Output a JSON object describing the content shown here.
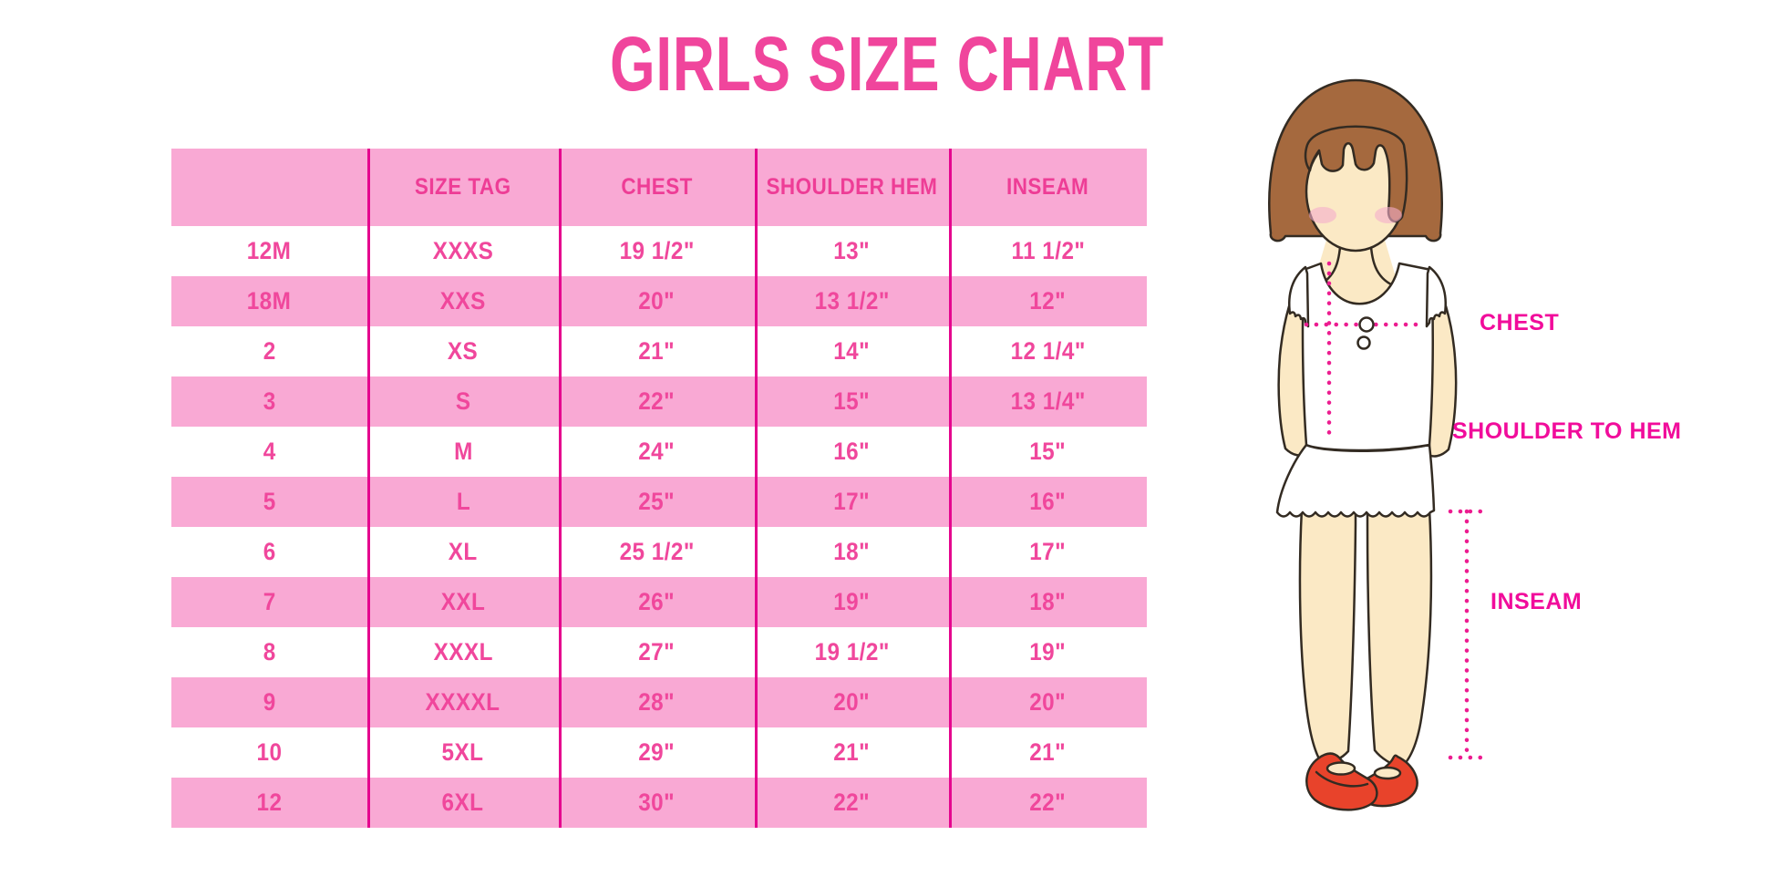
{
  "title": "GIRLS SIZE CHART",
  "chart_data": {
    "type": "table",
    "title": "GIRLS SIZE CHART",
    "columns": [
      "",
      "SIZE TAG",
      "CHEST",
      "SHOULDER HEM",
      "INSEAM"
    ],
    "rows": [
      [
        "12M",
        "XXXS",
        "19 1/2\"",
        "13\"",
        "11 1/2\""
      ],
      [
        "18M",
        "XXS",
        "20\"",
        "13 1/2\"",
        "12\""
      ],
      [
        "2",
        "XS",
        "21\"",
        "14\"",
        "12 1/4\""
      ],
      [
        "3",
        "S",
        "22\"",
        "15\"",
        "13 1/4\""
      ],
      [
        "4",
        "M",
        "24\"",
        "16\"",
        "15\""
      ],
      [
        "5",
        "L",
        "25\"",
        "17\"",
        "16\""
      ],
      [
        "6",
        "XL",
        "25 1/2\"",
        "18\"",
        "17\""
      ],
      [
        "7",
        "XXL",
        "26\"",
        "19\"",
        "18\""
      ],
      [
        "8",
        "XXXL",
        "27\"",
        "19 1/2\"",
        "19\""
      ],
      [
        "9",
        "XXXXL",
        "28\"",
        "20\"",
        "20\""
      ],
      [
        "10",
        "5XL",
        "29\"",
        "21\"",
        "21\""
      ],
      [
        "12",
        "6XL",
        "30\"",
        "22\"",
        "22\""
      ]
    ],
    "layout_hints": {
      "striped_rows": "even data rows pink",
      "grid": "vertical column dividers only"
    }
  },
  "diagram": {
    "chest_label": "CHEST",
    "shoulder_to_hem_label": "SHOULDER TO HEM",
    "inseam_label": "INSEAM",
    "figure_description": "girl-with-bob-hair-in-white-dress-and-red-shoes"
  },
  "colors": {
    "title_pink": "#F0459C",
    "row_pink": "#F9A9D4",
    "divider_magenta": "#E5058E",
    "cell_text_pink": "#F0479C",
    "label_magenta": "#F10C9B",
    "dotted_line_magenta": "#EC1C90",
    "hair_brown": "#A5693E",
    "skin": "#FBE9C5",
    "shoe_red": "#E8432B"
  }
}
